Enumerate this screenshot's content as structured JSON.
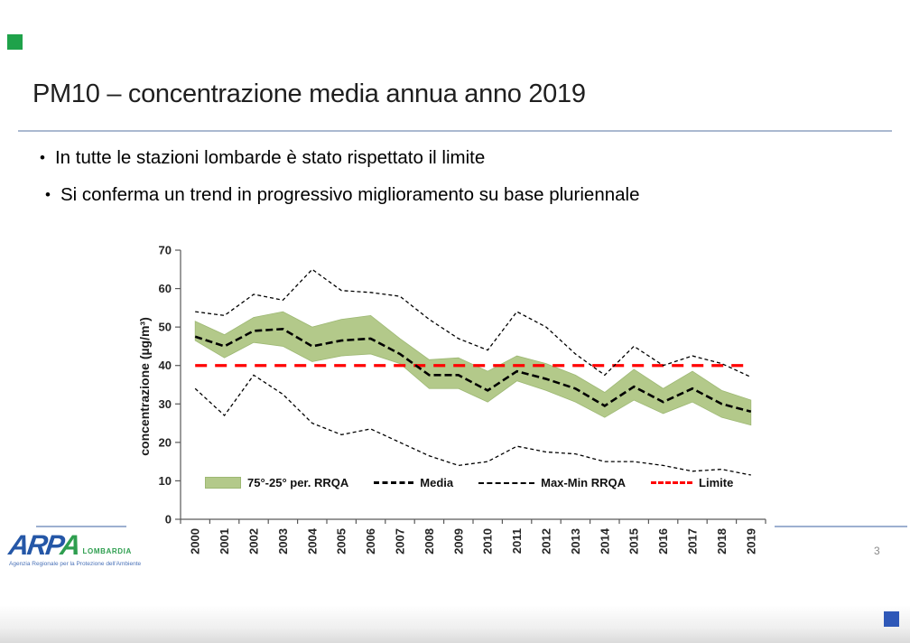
{
  "slide": {
    "title": "PM10 – concentrazione media annua anno 2019",
    "bullets": [
      "In tutte le stazioni lombarde è stato rispettato il limite",
      "Si conferma un trend in progressivo miglioramento su base pluriennale"
    ],
    "bullet_glyph": "•",
    "page_number": "3"
  },
  "logo": {
    "acronym_blue": "ARP",
    "acronym_green": "A",
    "region": "LOMBARDIA",
    "tagline": "Agenzia Regionale per la Protezione dell'Ambiente"
  },
  "colors": {
    "band_fill": "#b3c98a",
    "band_edge": "#9db873",
    "media_line": "#000000",
    "minmax_line": "#000000",
    "limite_line": "#ff0000",
    "axis": "#595959",
    "tick_text": "#262626",
    "title_rule": "#aab9d0",
    "footer_line": "#9db0d0",
    "marker_green": "#1fa24a",
    "marker_blue": "#2f58b8"
  },
  "chart_data": {
    "type": "line",
    "title": "",
    "xlabel": "",
    "ylabel": "concentrazione (µg/m³)",
    "ylim": [
      0,
      70
    ],
    "yticks": [
      0,
      10,
      20,
      30,
      40,
      50,
      60,
      70
    ],
    "grid": false,
    "legend_position": "bottom-inside",
    "categories": [
      "2000",
      "2001",
      "2002",
      "2003",
      "2004",
      "2005",
      "2006",
      "2007",
      "2008",
      "2009",
      "2010",
      "2011",
      "2012",
      "2013",
      "2014",
      "2015",
      "2016",
      "2017",
      "2018",
      "2019"
    ],
    "series": [
      {
        "name": "75°-25° per. RRQA",
        "type": "band",
        "upper": [
          51.5,
          48,
          52.5,
          54,
          50,
          52,
          53,
          47,
          41.5,
          42,
          38.5,
          42.5,
          40.5,
          37.5,
          33,
          39,
          34,
          38.5,
          33.5,
          31
        ],
        "lower": [
          46.5,
          42,
          46,
          45,
          41,
          42.5,
          43,
          40.5,
          34,
          34,
          30.5,
          36,
          33.5,
          30.5,
          26.5,
          31,
          27.5,
          30.5,
          26.5,
          24.5
        ]
      },
      {
        "name": "Media",
        "type": "line",
        "values": [
          47.5,
          45,
          49,
          49.5,
          45,
          46.5,
          47,
          43,
          37.5,
          37.5,
          33.5,
          38.5,
          36.5,
          34,
          29.5,
          34.5,
          30.5,
          34,
          30,
          28
        ]
      },
      {
        "name": "Max-Min RRQA",
        "type": "minmax",
        "max": [
          54,
          53,
          58.5,
          57,
          65,
          59.5,
          59,
          58,
          52,
          47,
          44,
          54,
          50,
          43,
          37.5,
          45,
          40,
          42.5,
          40.5,
          37
        ],
        "min": [
          34,
          27,
          37.5,
          32.5,
          25,
          22,
          23.5,
          20,
          16.5,
          14,
          15,
          19,
          17.5,
          17,
          15,
          15,
          14,
          12.5,
          13,
          11.5
        ]
      },
      {
        "name": "Limite",
        "type": "constant",
        "value": 40
      }
    ]
  }
}
